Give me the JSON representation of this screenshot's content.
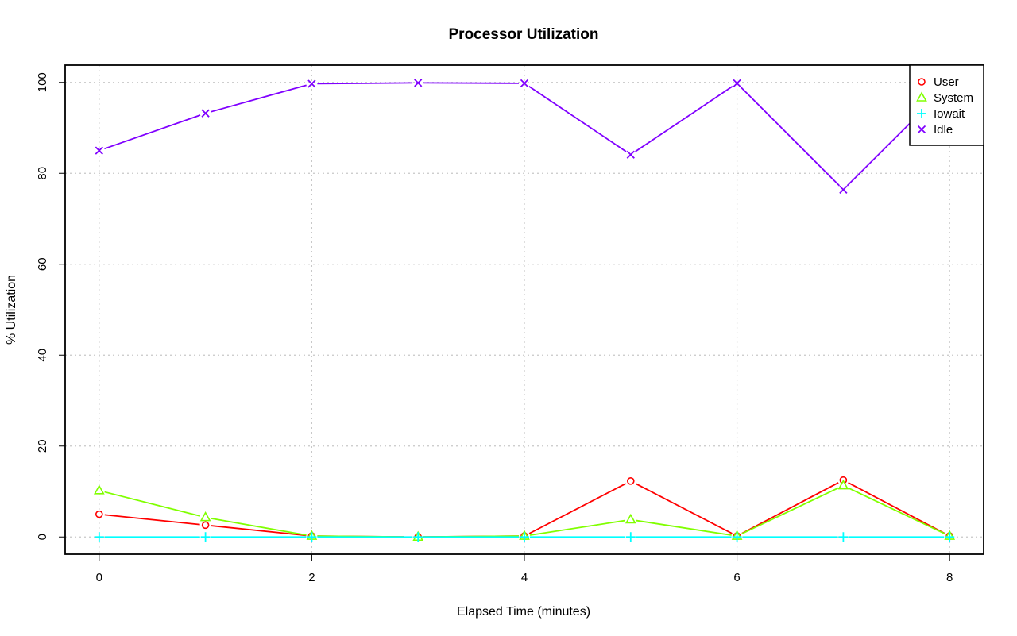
{
  "chart_data": {
    "type": "line",
    "title": "Processor Utilization",
    "xlabel": "Elapsed Time (minutes)",
    "ylabel": "% Utilization",
    "xlim": [
      -0.32,
      8.32
    ],
    "ylim": [
      -3.8,
      103.8
    ],
    "xticks": [
      0,
      2,
      4,
      6,
      8
    ],
    "yticks": [
      0,
      20,
      40,
      60,
      80,
      100
    ],
    "grid": true,
    "legend_position": "top-right",
    "x": [
      0,
      1,
      2,
      3,
      4,
      5,
      6,
      7,
      8
    ],
    "series": [
      {
        "name": "User",
        "color": "#ff0000",
        "marker": "circle",
        "values": [
          5.0,
          2.6,
          0.2,
          0.0,
          0.2,
          12.3,
          0.2,
          12.5,
          0.2
        ]
      },
      {
        "name": "System",
        "color": "#80ff00",
        "marker": "triangle",
        "values": [
          10.2,
          4.3,
          0.2,
          0.0,
          0.2,
          3.8,
          0.2,
          11.3,
          0.2
        ]
      },
      {
        "name": "Iowait",
        "color": "#00ffff",
        "marker": "plus",
        "values": [
          0,
          0,
          0,
          0,
          0,
          0,
          0,
          0,
          0
        ]
      },
      {
        "name": "Idle",
        "color": "#8000ff",
        "marker": "x",
        "values": [
          85.0,
          93.2,
          99.7,
          99.9,
          99.8,
          84.1,
          99.8,
          76.4,
          99.7
        ]
      }
    ]
  }
}
